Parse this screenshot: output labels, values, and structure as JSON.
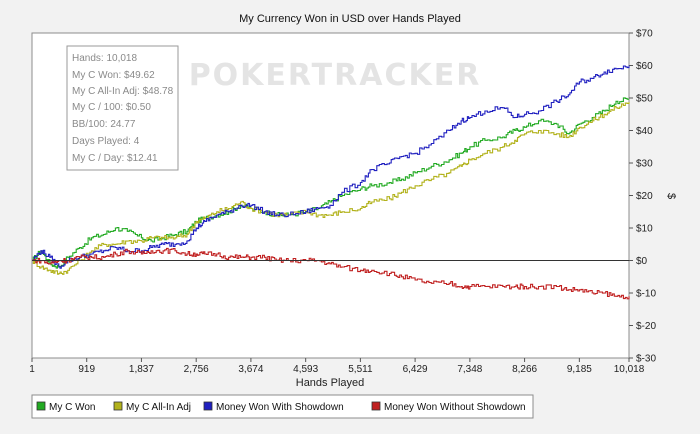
{
  "chart_data": {
    "type": "line",
    "title": "My Currency Won in USD over Hands Played",
    "xlabel": "Hands Played",
    "ylabel": "$",
    "xlim": [
      1,
      10018
    ],
    "ylim": [
      -30,
      70
    ],
    "x_ticks": [
      1,
      919,
      1837,
      2756,
      3674,
      4593,
      5511,
      6429,
      7348,
      8266,
      9185,
      10018
    ],
    "x_tick_labels": [
      "1",
      "919",
      "1,837",
      "2,756",
      "3,674",
      "4,593",
      "5,511",
      "6,429",
      "7,348",
      "8,266",
      "9,185",
      "10,018"
    ],
    "y_ticks": [
      -30,
      -20,
      -10,
      0,
      10,
      20,
      30,
      40,
      50,
      60,
      70
    ],
    "y_tick_labels": [
      "$-30",
      "$-20",
      "$-10",
      "$0",
      "$10",
      "$20",
      "$30",
      "$40",
      "$50",
      "$60",
      "$70"
    ],
    "watermark": "POKERTRACKER",
    "stats": [
      "Hands: 10,018",
      "My C Won: $49.62",
      "My C All-In Adj: $48.78",
      "My C / 100: $0.50",
      "BB/100: 24.77",
      "Days Played: 4",
      "My C / Day: $12.41"
    ],
    "series": [
      {
        "name": "My C Won",
        "color": "#22aa22",
        "x": [
          1,
          150,
          300,
          450,
          600,
          800,
          1000,
          1200,
          1400,
          1600,
          1837,
          2000,
          2200,
          2400,
          2600,
          2756,
          2900,
          3100,
          3300,
          3500,
          3674,
          3900,
          4100,
          4300,
          4593,
          4800,
          5000,
          5200,
          5511,
          5700,
          6000,
          6200,
          6429,
          6700,
          7000,
          7200,
          7348,
          7600,
          7900,
          8100,
          8266,
          8500,
          8800,
          9000,
          9185,
          9400,
          9600,
          9800,
          10018
        ],
        "values": [
          0,
          3,
          -1,
          -2,
          1,
          4,
          7,
          8,
          10,
          9,
          7,
          6,
          7,
          8,
          9,
          12,
          13,
          14,
          15,
          17,
          16,
          15,
          14,
          14,
          15,
          16,
          18,
          20,
          22,
          23,
          24,
          25,
          27,
          29,
          31,
          33,
          35,
          37,
          38,
          40,
          41,
          43,
          42,
          39,
          42,
          44,
          46,
          49,
          49.62
        ]
      },
      {
        "name": "My C All-In Adj",
        "color": "#b2b21c",
        "x": [
          1,
          150,
          300,
          450,
          600,
          800,
          1000,
          1200,
          1400,
          1600,
          1837,
          2000,
          2200,
          2400,
          2600,
          2756,
          2900,
          3100,
          3300,
          3500,
          3674,
          3900,
          4100,
          4300,
          4593,
          4800,
          5000,
          5200,
          5511,
          5700,
          6000,
          6200,
          6429,
          6700,
          7000,
          7200,
          7348,
          7600,
          7900,
          8100,
          8266,
          8500,
          8800,
          9000,
          9185,
          9400,
          9600,
          9800,
          10018
        ],
        "values": [
          0,
          -2,
          -3,
          -4,
          -3,
          0,
          3,
          5,
          5,
          6,
          6,
          7,
          7,
          7,
          8,
          12,
          13,
          15,
          16,
          18,
          16,
          15,
          14,
          14,
          15,
          14,
          14,
          15,
          16,
          18,
          19,
          21,
          23,
          25,
          27,
          29,
          31,
          33,
          35,
          37,
          39,
          40,
          39,
          38,
          41,
          43,
          45,
          47,
          48.78
        ]
      },
      {
        "name": "Money Won With Showdown",
        "color": "#2020c0",
        "x": [
          1,
          150,
          300,
          450,
          600,
          800,
          1000,
          1200,
          1400,
          1600,
          1837,
          2000,
          2200,
          2400,
          2600,
          2756,
          2900,
          3100,
          3300,
          3500,
          3674,
          3900,
          4100,
          4300,
          4593,
          4800,
          5000,
          5200,
          5511,
          5700,
          6000,
          6200,
          6429,
          6700,
          7000,
          7200,
          7348,
          7600,
          7900,
          8100,
          8266,
          8500,
          8800,
          9000,
          9185,
          9400,
          9600,
          9800,
          10018
        ],
        "values": [
          0,
          3,
          1,
          -2,
          0,
          1,
          2,
          3,
          4,
          3,
          3,
          4,
          5,
          5,
          6,
          10,
          12,
          14,
          15,
          17,
          17,
          15,
          14,
          14,
          15,
          16,
          17,
          21,
          24,
          28,
          30,
          32,
          33,
          36,
          40,
          43,
          44,
          46,
          47,
          44,
          45,
          46,
          49,
          51,
          55,
          56,
          58,
          59,
          60
        ]
      },
      {
        "name": "Money Won Without Showdown",
        "color": "#c02020",
        "x": [
          1,
          150,
          300,
          450,
          600,
          800,
          1000,
          1200,
          1400,
          1600,
          1837,
          2000,
          2200,
          2400,
          2600,
          2756,
          2900,
          3100,
          3300,
          3500,
          3674,
          3900,
          4100,
          4300,
          4593,
          4800,
          5000,
          5200,
          5511,
          5700,
          6000,
          6200,
          6429,
          6700,
          7000,
          7200,
          7348,
          7600,
          7900,
          8100,
          8266,
          8500,
          8800,
          9000,
          9185,
          9400,
          9600,
          9800,
          10018
        ],
        "values": [
          0,
          0,
          -1,
          0,
          0,
          1,
          1,
          1,
          2,
          3,
          2,
          3,
          3,
          3,
          2,
          2,
          2,
          2,
          1,
          1,
          1,
          1,
          0,
          0,
          0,
          0,
          -1,
          -2,
          -3,
          -3,
          -4,
          -5,
          -6,
          -7,
          -7,
          -8,
          -8,
          -8,
          -8,
          -8,
          -8,
          -8,
          -8,
          -9,
          -9,
          -10,
          -10,
          -11,
          -11
        ]
      }
    ]
  }
}
